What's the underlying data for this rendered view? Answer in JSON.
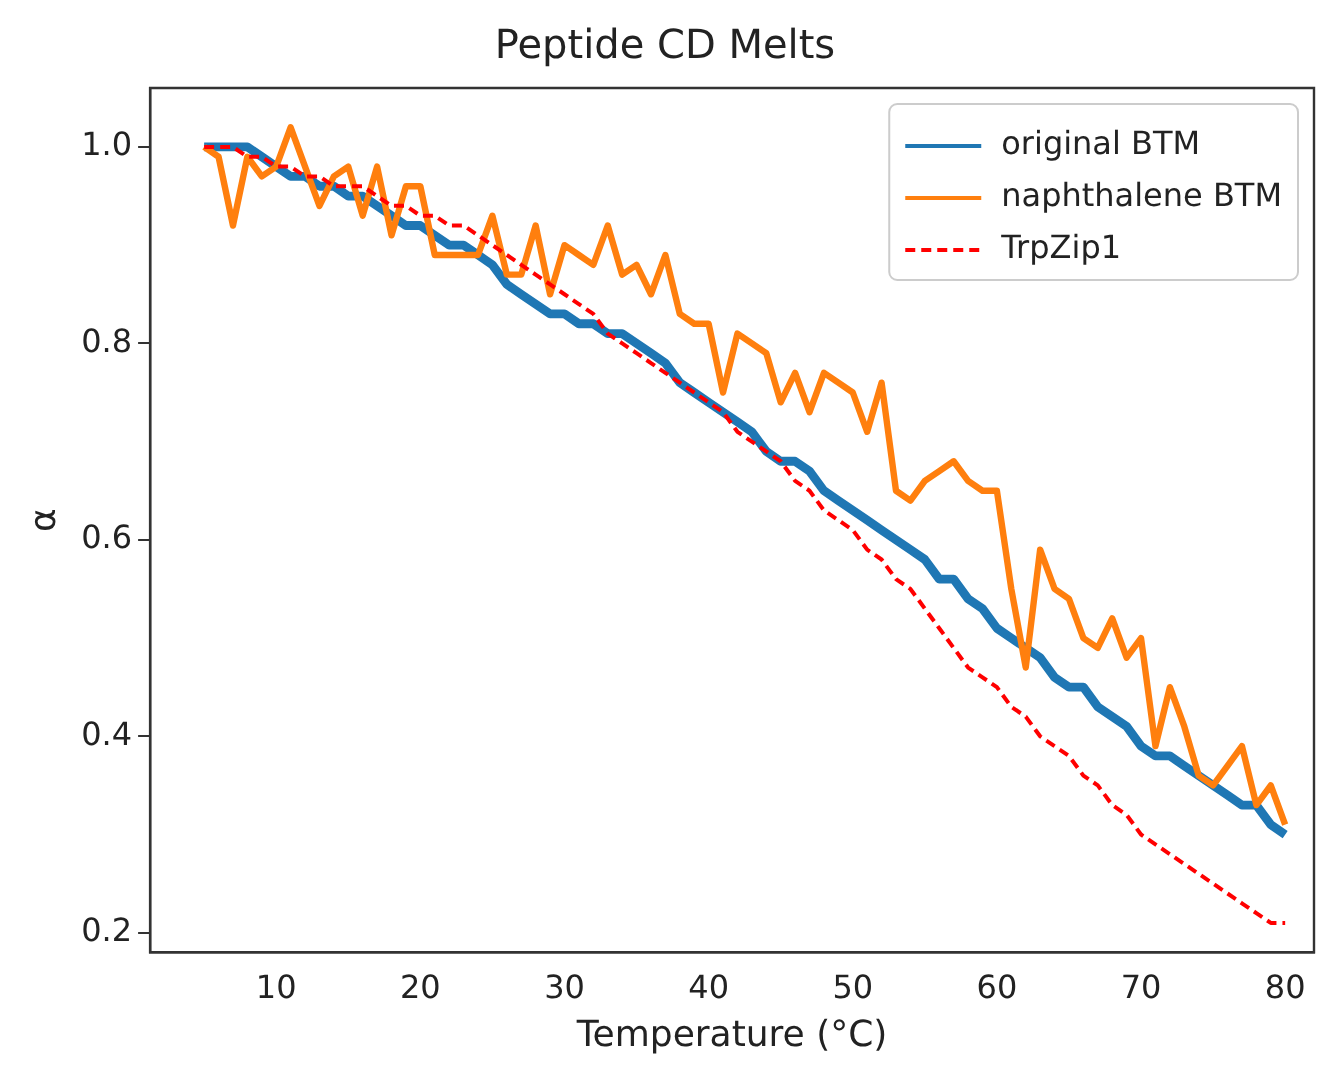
{
  "chart_data": {
    "type": "line",
    "title": "Peptide CD Melts",
    "xlabel": "Temperature (°C)",
    "ylabel": "α",
    "x": [
      5,
      6,
      7,
      8,
      9,
      10,
      11,
      12,
      13,
      14,
      15,
      16,
      17,
      18,
      19,
      20,
      21,
      22,
      23,
      24,
      25,
      26,
      27,
      28,
      29,
      30,
      31,
      32,
      33,
      34,
      35,
      36,
      37,
      38,
      39,
      40,
      41,
      42,
      43,
      44,
      45,
      46,
      47,
      48,
      49,
      50,
      51,
      52,
      53,
      54,
      55,
      56,
      57,
      58,
      59,
      60,
      61,
      62,
      63,
      64,
      65,
      66,
      67,
      68,
      69,
      70,
      71,
      72,
      73,
      74,
      75,
      76,
      77,
      78,
      79,
      80
    ],
    "series": [
      {
        "name": "original BTM",
        "color": "#1f77b4",
        "line_style": "solid",
        "values": [
          1.0,
          1.0,
          1.0,
          1.0,
          0.99,
          0.98,
          0.97,
          0.97,
          0.96,
          0.96,
          0.95,
          0.95,
          0.94,
          0.93,
          0.92,
          0.92,
          0.91,
          0.9,
          0.9,
          0.89,
          0.88,
          0.86,
          0.85,
          0.84,
          0.83,
          0.83,
          0.82,
          0.82,
          0.81,
          0.81,
          0.8,
          0.79,
          0.78,
          0.76,
          0.75,
          0.74,
          0.73,
          0.72,
          0.71,
          0.69,
          0.68,
          0.68,
          0.67,
          0.65,
          0.64,
          0.63,
          0.62,
          0.61,
          0.6,
          0.59,
          0.58,
          0.56,
          0.56,
          0.54,
          0.53,
          0.51,
          0.5,
          0.49,
          0.48,
          0.46,
          0.45,
          0.45,
          0.43,
          0.42,
          0.41,
          0.39,
          0.38,
          0.38,
          0.37,
          0.36,
          0.35,
          0.34,
          0.33,
          0.33,
          0.31,
          0.3
        ]
      },
      {
        "name": "naphthalene BTM",
        "color": "#ff7f0e",
        "line_style": "solid",
        "values": [
          1.0,
          0.99,
          0.92,
          0.99,
          0.97,
          0.98,
          1.02,
          0.98,
          0.94,
          0.97,
          0.98,
          0.93,
          0.98,
          0.91,
          0.96,
          0.96,
          0.89,
          0.89,
          0.89,
          0.89,
          0.93,
          0.87,
          0.87,
          0.92,
          0.85,
          0.9,
          0.89,
          0.88,
          0.92,
          0.87,
          0.88,
          0.85,
          0.89,
          0.83,
          0.82,
          0.82,
          0.75,
          0.81,
          0.8,
          0.79,
          0.74,
          0.77,
          0.73,
          0.77,
          0.76,
          0.75,
          0.71,
          0.76,
          0.65,
          0.64,
          0.66,
          0.67,
          0.68,
          0.66,
          0.65,
          0.65,
          0.55,
          0.47,
          0.59,
          0.55,
          0.54,
          0.5,
          0.49,
          0.52,
          0.48,
          0.5,
          0.39,
          0.45,
          0.41,
          0.36,
          0.35,
          0.37,
          0.39,
          0.33,
          0.35,
          0.31
        ]
      },
      {
        "name": "TrpZip1",
        "color": "#ff0000",
        "line_style": "dashed",
        "values": [
          1.0,
          1.0,
          1.0,
          0.99,
          0.99,
          0.98,
          0.98,
          0.97,
          0.97,
          0.96,
          0.96,
          0.96,
          0.95,
          0.94,
          0.94,
          0.93,
          0.93,
          0.92,
          0.92,
          0.91,
          0.9,
          0.89,
          0.88,
          0.87,
          0.86,
          0.85,
          0.84,
          0.83,
          0.81,
          0.8,
          0.79,
          0.78,
          0.77,
          0.76,
          0.75,
          0.74,
          0.73,
          0.71,
          0.7,
          0.69,
          0.68,
          0.66,
          0.65,
          0.63,
          0.62,
          0.61,
          0.59,
          0.58,
          0.56,
          0.55,
          0.53,
          0.51,
          0.49,
          0.47,
          0.46,
          0.45,
          0.43,
          0.42,
          0.4,
          0.39,
          0.38,
          0.36,
          0.35,
          0.33,
          0.32,
          0.3,
          0.29,
          0.28,
          0.27,
          0.26,
          0.25,
          0.24,
          0.23,
          0.22,
          0.21,
          0.21
        ]
      }
    ],
    "xlim": [
      1.25,
      82
    ],
    "ylim": [
      0.18,
      1.06
    ],
    "xticks": [
      10,
      20,
      30,
      40,
      50,
      60,
      70,
      80
    ],
    "yticks": [
      0.2,
      0.4,
      0.6,
      0.8,
      {
        "value": 1.0,
        "label": "1.0"
      }
    ],
    "grid": false,
    "legend": "top right"
  }
}
